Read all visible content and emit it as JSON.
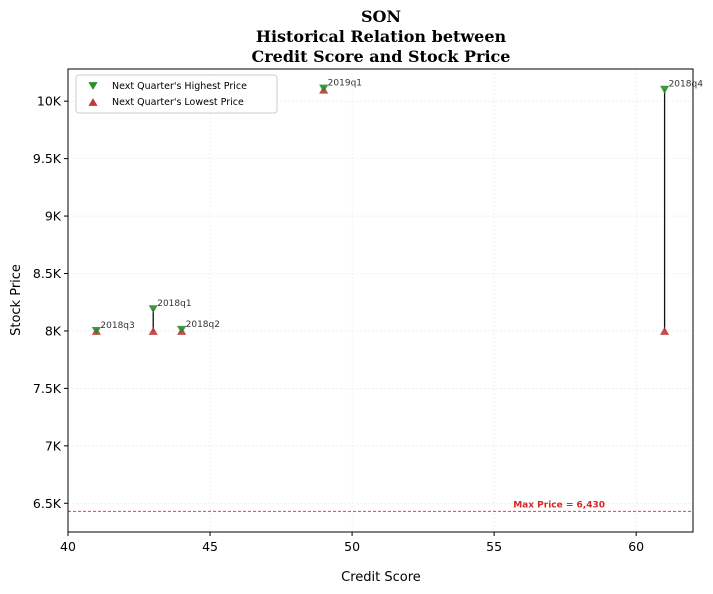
{
  "chart_data": {
    "type": "scatter",
    "title_lines": [
      "SON",
      "Historical Relation between",
      "Credit Score and Stock Price"
    ],
    "xlabel": "Credit Score",
    "ylabel": "Stock Price",
    "xlim": [
      40,
      62
    ],
    "ylim": [
      6250,
      10280
    ],
    "x_ticks": [
      40,
      45,
      50,
      55,
      60
    ],
    "y_ticks": [
      {
        "value": 6500,
        "label": "6.5K"
      },
      {
        "value": 7000,
        "label": "7K"
      },
      {
        "value": 7500,
        "label": "7.5K"
      },
      {
        "value": 8000,
        "label": "8K"
      },
      {
        "value": 8500,
        "label": "8.5K"
      },
      {
        "value": 9000,
        "label": "9K"
      },
      {
        "value": 9500,
        "label": "9.5K"
      },
      {
        "value": 10000,
        "label": "10K"
      }
    ],
    "grid": true,
    "legend_position": "top-left",
    "series": [
      {
        "name": "Next Quarter's Highest Price",
        "marker": "triangle-down",
        "color": "#2e8b2e"
      },
      {
        "name": "Next Quarter's Lowest Price",
        "marker": "triangle-up",
        "color": "#c0393b"
      }
    ],
    "points": [
      {
        "label": "2018q3",
        "x": 41,
        "high": 8000,
        "low": 8000
      },
      {
        "label": "2018q1",
        "x": 43,
        "high": 8190,
        "low": 8000
      },
      {
        "label": "2018q2",
        "x": 44,
        "high": 8010,
        "low": 8000
      },
      {
        "label": "2019q1",
        "x": 49,
        "high": 10110,
        "low": 10100
      },
      {
        "label": "2018q4",
        "x": 61,
        "high": 10100,
        "low": 8000
      }
    ],
    "reference_line": {
      "value": 6430,
      "label": "Max Price = 6,430",
      "color": "#d62728"
    }
  }
}
